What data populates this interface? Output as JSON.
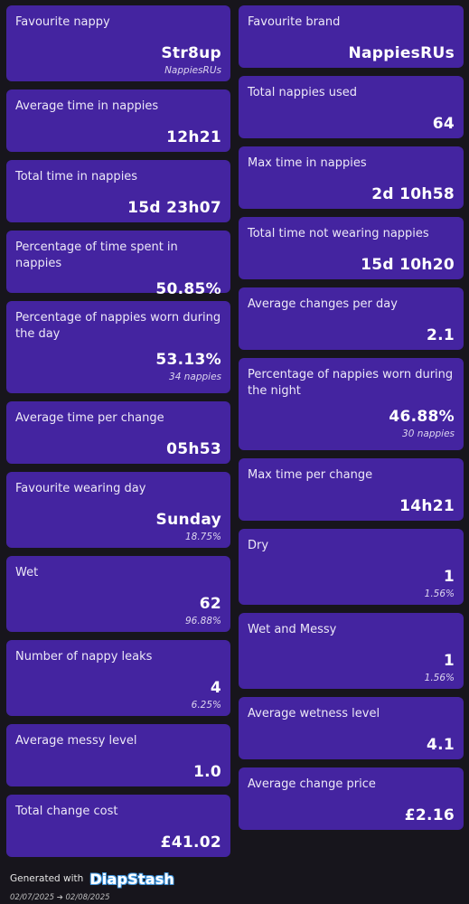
{
  "left_cards": [
    {
      "label": "Favourite nappy",
      "value": "Str8up",
      "sub": "NappiesRUs",
      "h": 84
    },
    {
      "label": "Average time in nappies",
      "value": "12h21",
      "sub": "",
      "h": 69
    },
    {
      "label": "Total time in nappies",
      "value": "15d 23h07",
      "sub": "",
      "h": 69
    },
    {
      "label": "Percentage of time spent in nappies",
      "value": "50.85%",
      "sub": "",
      "h": 69
    },
    {
      "label": "Percentage of nappies worn during the day",
      "value": "53.13%",
      "sub": "34 nappies",
      "h": 102
    },
    {
      "label": "Average time per change",
      "value": "05h53",
      "sub": "",
      "h": 69
    },
    {
      "label": "Favourite wearing day",
      "value": "Sunday",
      "sub": "18.75%",
      "h": 84
    },
    {
      "label": "Wet",
      "value": "62",
      "sub": "96.88%",
      "h": 84
    },
    {
      "label": "Number of nappy leaks",
      "value": "4",
      "sub": "6.25%",
      "h": 84
    },
    {
      "label": "Average messy level",
      "value": "1.0",
      "sub": "",
      "h": 69
    },
    {
      "label": "Total change cost",
      "value": "£41.02",
      "sub": "",
      "h": 69
    }
  ],
  "right_cards": [
    {
      "label": "Favourite brand",
      "value": "NappiesRUs",
      "sub": "",
      "h": 69
    },
    {
      "label": "Total nappies used",
      "value": "64",
      "sub": "",
      "h": 69
    },
    {
      "label": "Max time in nappies",
      "value": "2d 10h58",
      "sub": "",
      "h": 69
    },
    {
      "label": "Total time not wearing nappies",
      "value": "15d 10h20",
      "sub": "",
      "h": 69
    },
    {
      "label": "Average changes per day",
      "value": "2.1",
      "sub": "",
      "h": 69
    },
    {
      "label": "Percentage of nappies worn during the night",
      "value": "46.88%",
      "sub": "30 nappies",
      "h": 102
    },
    {
      "label": "Max time per change",
      "value": "14h21",
      "sub": "",
      "h": 69
    },
    {
      "label": "Dry",
      "value": "1",
      "sub": "1.56%",
      "h": 84
    },
    {
      "label": "Wet and Messy",
      "value": "1",
      "sub": "1.56%",
      "h": 84
    },
    {
      "label": "Average wetness level",
      "value": "4.1",
      "sub": "",
      "h": 69
    },
    {
      "label": "Average change price",
      "value": "£2.16",
      "sub": "",
      "h": 69
    }
  ],
  "footer": {
    "generated_with": "Generated with",
    "brand": "DiapStash",
    "date_range": "02/07/2025 ➔ 02/08/2025"
  }
}
